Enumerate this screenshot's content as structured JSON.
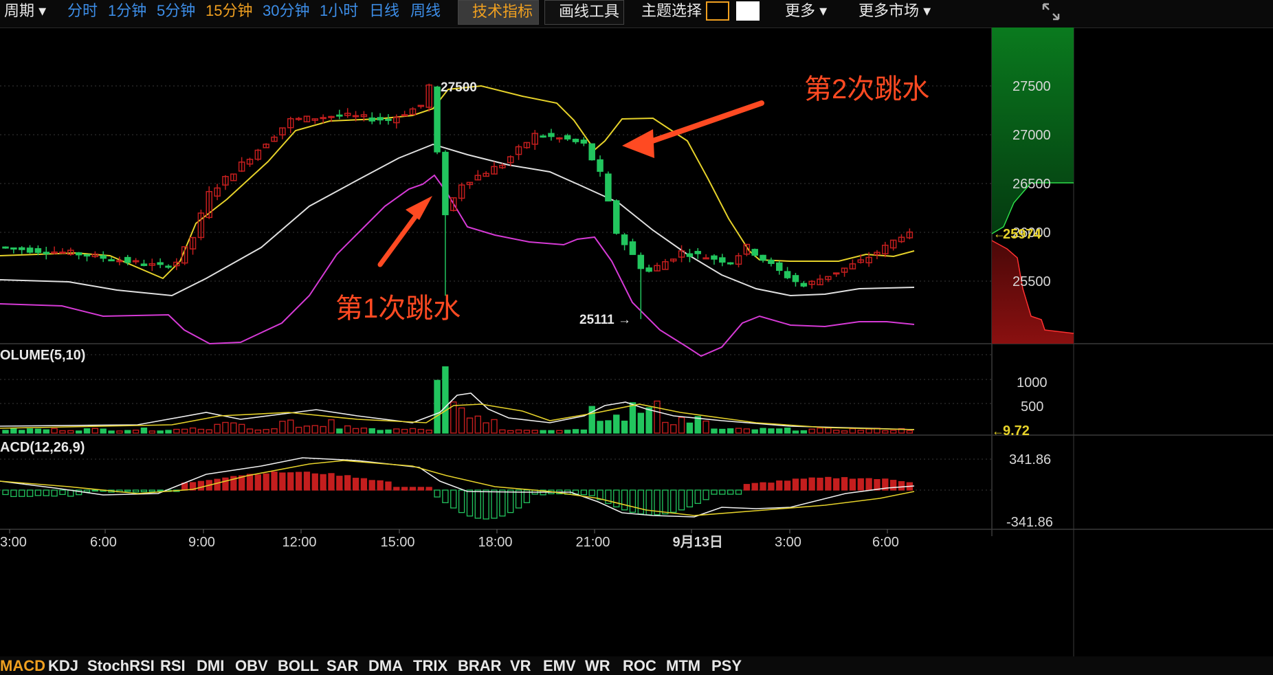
{
  "toolbar": {
    "period_label": "周期 ▾",
    "timeframes": [
      "分时",
      "1分钟",
      "5分钟",
      "15分钟",
      "30分钟",
      "1小时",
      "日线",
      "周线"
    ],
    "selected_timeframe": "15分钟",
    "tech_indicator": "技术指标",
    "drawing_tools": "画线工具",
    "theme_select": "主题选择",
    "more": "更多 ▾",
    "more_markets": "更多市场 ▾"
  },
  "main_panel": {
    "price_ticks": [
      "27500",
      "27000",
      "26500",
      "26000",
      "25500"
    ],
    "current_price": "25974",
    "high_label": "27500",
    "low_label": "25111 →",
    "annotation_1": "第1次跳水",
    "annotation_2": "第2次跳水"
  },
  "volume_panel": {
    "label": "OLUME(5,10)",
    "ticks": [
      "1000",
      "500"
    ],
    "current_value": "9.72"
  },
  "macd_panel": {
    "label": "ACD(12,26,9)",
    "ticks": [
      "341.86",
      "-341.86"
    ]
  },
  "time_axis": [
    "3:00",
    "6:00",
    "9:00",
    "12:00",
    "15:00",
    "18:00",
    "21:00",
    "9月13日",
    "3:00",
    "6:00"
  ],
  "indicators": [
    "MACD",
    "KDJ",
    "StochRSI",
    "RSI",
    "DMI",
    "OBV",
    "BOLL",
    "SAR",
    "DMA",
    "TRIX",
    "BRAR",
    "VR",
    "EMV",
    "WR",
    "ROC",
    "MTM",
    "PSY"
  ],
  "active_indicator": "MACD",
  "colors": {
    "up": "#c41e1e",
    "down": "#22c55e",
    "boll_upper": "#e6d22a",
    "boll_mid": "#e0e0e0",
    "boll_lower": "#d63ad6",
    "annotation": "#ff4a22",
    "accent": "#f0a020"
  },
  "chart_data": {
    "type": "candlestick",
    "price_range": [
      25100,
      27750
    ],
    "key_points": [
      {
        "t": "2:00",
        "price": 25850
      },
      {
        "t": "8:00",
        "price": 25650
      },
      {
        "t": "9:00",
        "price": 26400
      },
      {
        "t": "12:00",
        "price": 27150
      },
      {
        "t": "15:00",
        "price": 27150
      },
      {
        "t": "16:00",
        "price": 27500
      },
      {
        "t": "16:30",
        "price": 26200
      },
      {
        "t": "19:00",
        "price": 27000
      },
      {
        "t": "20:30",
        "price": 26950
      },
      {
        "t": "21:30",
        "price": 26000
      },
      {
        "t": "23:00",
        "price": 25111
      },
      {
        "t": "1:00",
        "price": 25800
      },
      {
        "t": "2:30",
        "price": 25550
      },
      {
        "t": "5:00",
        "price": 25850
      },
      {
        "t": "7:00",
        "price": 25974
      }
    ],
    "volume_range": [
      0,
      1350
    ],
    "macd_range": [
      -341.86,
      341.86
    ]
  }
}
